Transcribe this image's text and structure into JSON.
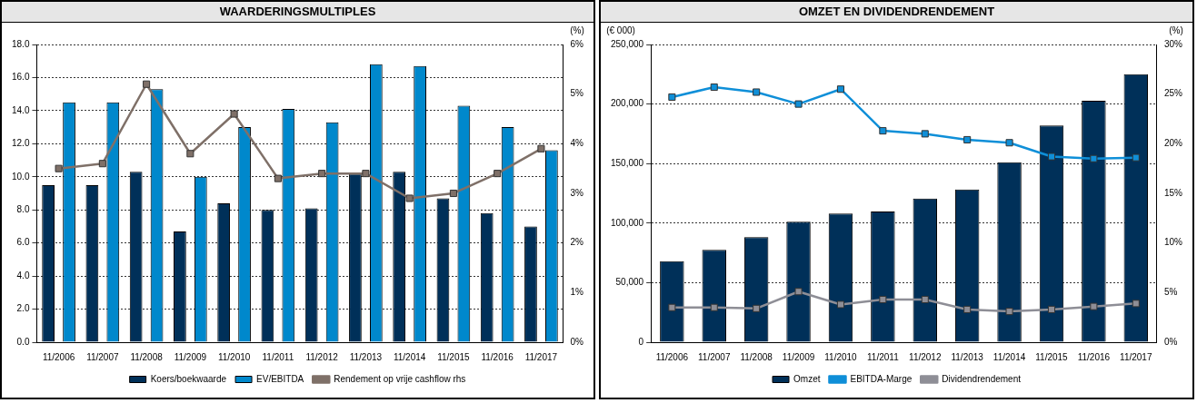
{
  "chart_data": [
    {
      "type": "bar",
      "title": "WAARDERINGSMULTIPLES",
      "y2label": "(%)",
      "categories": [
        "11/2006",
        "11/2007",
        "11/2008",
        "11/2009",
        "11/2010",
        "11/2011",
        "11/2012",
        "11/2013",
        "11/2014",
        "11/2015",
        "11/2016",
        "11/2017"
      ],
      "series": [
        {
          "name": "Koers/boekwaarde",
          "color": "#003059",
          "values": [
            9.5,
            9.5,
            10.3,
            6.7,
            8.4,
            8.0,
            8.1,
            10.2,
            10.3,
            8.7,
            7.8,
            7.0
          ]
        },
        {
          "name": "EV/EBITDA",
          "color": "#0088cc",
          "values": [
            14.5,
            14.5,
            15.3,
            10.0,
            13.0,
            14.1,
            13.3,
            16.8,
            16.7,
            14.3,
            13.0,
            11.6
          ]
        },
        {
          "name": "Rendement op vrije cashflow rhs",
          "type": "line",
          "axis": "y2",
          "color": "#7f7068",
          "values": [
            3.5,
            3.6,
            5.2,
            3.8,
            4.6,
            3.3,
            3.4,
            3.4,
            2.9,
            3.0,
            3.4,
            3.9
          ]
        }
      ],
      "ylim": [
        0,
        18
      ],
      "yticks": [
        {
          "value": 0,
          "label": "0.0"
        },
        {
          "value": 2,
          "label": "2.0"
        },
        {
          "value": 4,
          "label": "4.0"
        },
        {
          "value": 6,
          "label": "6.0"
        },
        {
          "value": 8,
          "label": "8.0"
        },
        {
          "value": 10,
          "label": "10.0"
        },
        {
          "value": 12,
          "label": "12.0"
        },
        {
          "value": 14,
          "label": "14.0"
        },
        {
          "value": 16,
          "label": "16.0"
        },
        {
          "value": 18,
          "label": "18.0"
        }
      ],
      "y2lim": [
        0,
        6
      ],
      "y2ticks": [
        {
          "value": 0,
          "label": "0%"
        },
        {
          "value": 1,
          "label": "1%"
        },
        {
          "value": 2,
          "label": "2%"
        },
        {
          "value": 3,
          "label": "3%"
        },
        {
          "value": 4,
          "label": "4%"
        },
        {
          "value": 5,
          "label": "5%"
        },
        {
          "value": 6,
          "label": "6%"
        }
      ],
      "grid": "y",
      "legend": "bottom",
      "marker": "square"
    },
    {
      "type": "bar",
      "title": "OMZET EN DIVIDENDRENDEMENT",
      "ylabel": "(€ 000)",
      "y2label": "(%)",
      "categories": [
        "11/2006",
        "11/2007",
        "11/2008",
        "11/2009",
        "11/2010",
        "11/2011",
        "11/2012",
        "11/2013",
        "11/2014",
        "11/2015",
        "11/2016",
        "11/2017"
      ],
      "series": [
        {
          "name": "Omzet",
          "color": "#003059",
          "values": [
            68000,
            77600,
            88200,
            101200,
            108000,
            109800,
            120700,
            128200,
            151200,
            182000,
            202800,
            225000
          ]
        },
        {
          "name": "EBITDA-Marge",
          "type": "line",
          "axis": "y2",
          "color": "#0f8fd8",
          "values": [
            24.7,
            25.7,
            25.2,
            24.0,
            25.5,
            21.3,
            21.0,
            20.4,
            20.1,
            18.7,
            18.5,
            18.6
          ]
        },
        {
          "name": "Dividendrendement",
          "type": "line",
          "axis": "y2",
          "color": "#8e8e96",
          "values": [
            3.5,
            3.5,
            3.4,
            5.1,
            3.8,
            4.3,
            4.3,
            3.3,
            3.1,
            3.3,
            3.6,
            3.9
          ]
        }
      ],
      "ylim": [
        0,
        250000
      ],
      "yticks": [
        0,
        {
          "value": 50000,
          "label": "50,000"
        },
        {
          "value": 100000,
          "label": "100,000"
        },
        {
          "value": 150000,
          "label": "150,000"
        },
        {
          "value": 200000,
          "label": "200,000"
        },
        {
          "value": 250000,
          "label": "250,000"
        }
      ],
      "y2lim": [
        0,
        30
      ],
      "y2ticks": [
        {
          "value": 0,
          "label": "0%"
        },
        {
          "value": 5,
          "label": "5%"
        },
        {
          "value": 10,
          "label": "10%"
        },
        {
          "value": 15,
          "label": "15%"
        },
        {
          "value": 20,
          "label": "20%"
        },
        {
          "value": 25,
          "label": "25%"
        },
        {
          "value": 30,
          "label": "30%"
        }
      ],
      "grid": "y",
      "legend": "bottom",
      "marker": "square"
    }
  ]
}
